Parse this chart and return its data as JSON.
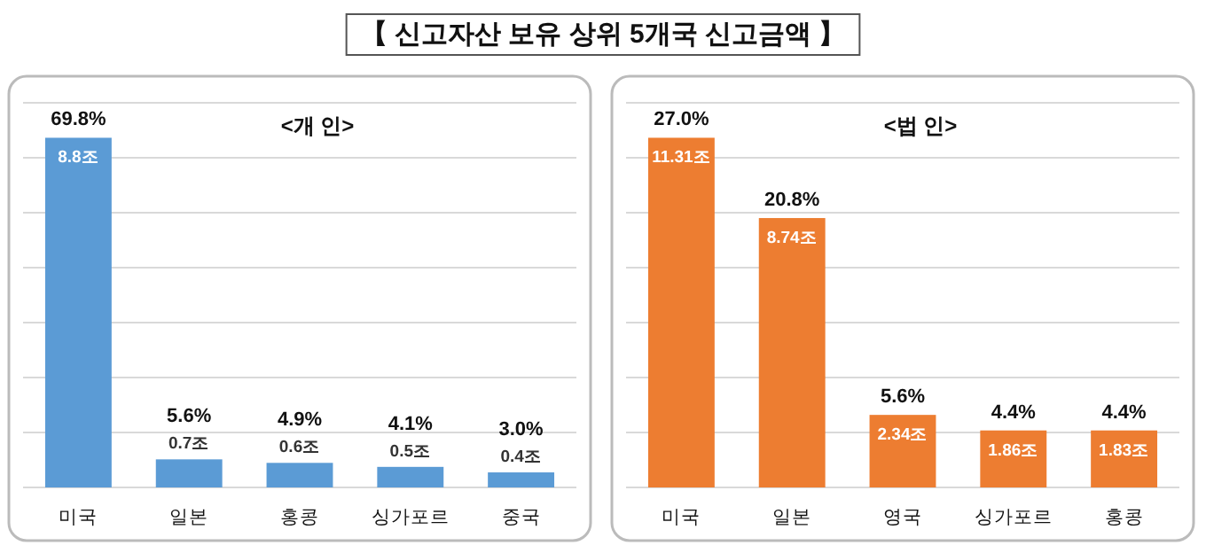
{
  "chart_data": [
    {
      "type": "other",
      "title": "【 신고자산 보유 상위 5개국 신고금액 】"
    },
    {
      "type": "bar",
      "title": "<개 인>",
      "grid": "y",
      "categories": [
        "미국",
        "일본",
        "홍콩",
        "싱가포르",
        "중국"
      ],
      "color": "#5b9bd5",
      "values": [
        69.8,
        5.6,
        4.9,
        4.1,
        3.0
      ],
      "value_labels": [
        "69.8%",
        "5.6%",
        "4.9%",
        "4.1%",
        "3.0%"
      ],
      "annotations": [
        {
          "text": "8.8조",
          "x": "미국",
          "y": 69.8
        },
        {
          "text": "0.7조",
          "x": "일본",
          "y": 5.6
        },
        {
          "text": "0.6조",
          "x": "홍콩",
          "y": 4.9
        },
        {
          "text": "0.5조",
          "x": "싱가포르",
          "y": 4.1
        },
        {
          "text": "0.4조",
          "x": "중국",
          "y": 3.0
        }
      ]
    },
    {
      "type": "bar",
      "title": "<법 인>",
      "grid": "y",
      "categories": [
        "미국",
        "일본",
        "영국",
        "싱가포르",
        "홍콩"
      ],
      "color": "#ed7d31",
      "values": [
        27.0,
        20.8,
        5.6,
        4.4,
        4.4
      ],
      "value_labels": [
        "27.0%",
        "20.8%",
        "5.6%",
        "4.4%",
        "4.4%"
      ],
      "annotations": [
        {
          "text": "11.31조",
          "x": "미국",
          "y": 27.0
        },
        {
          "text": "8.74조",
          "x": "일본",
          "y": 20.8
        },
        {
          "text": "2.34조",
          "x": "영국",
          "y": 5.6
        },
        {
          "text": "1.86조",
          "x": "싱가포르",
          "y": 4.4
        },
        {
          "text": "1.83조",
          "x": "홍콩",
          "y": 4.4
        }
      ]
    }
  ]
}
